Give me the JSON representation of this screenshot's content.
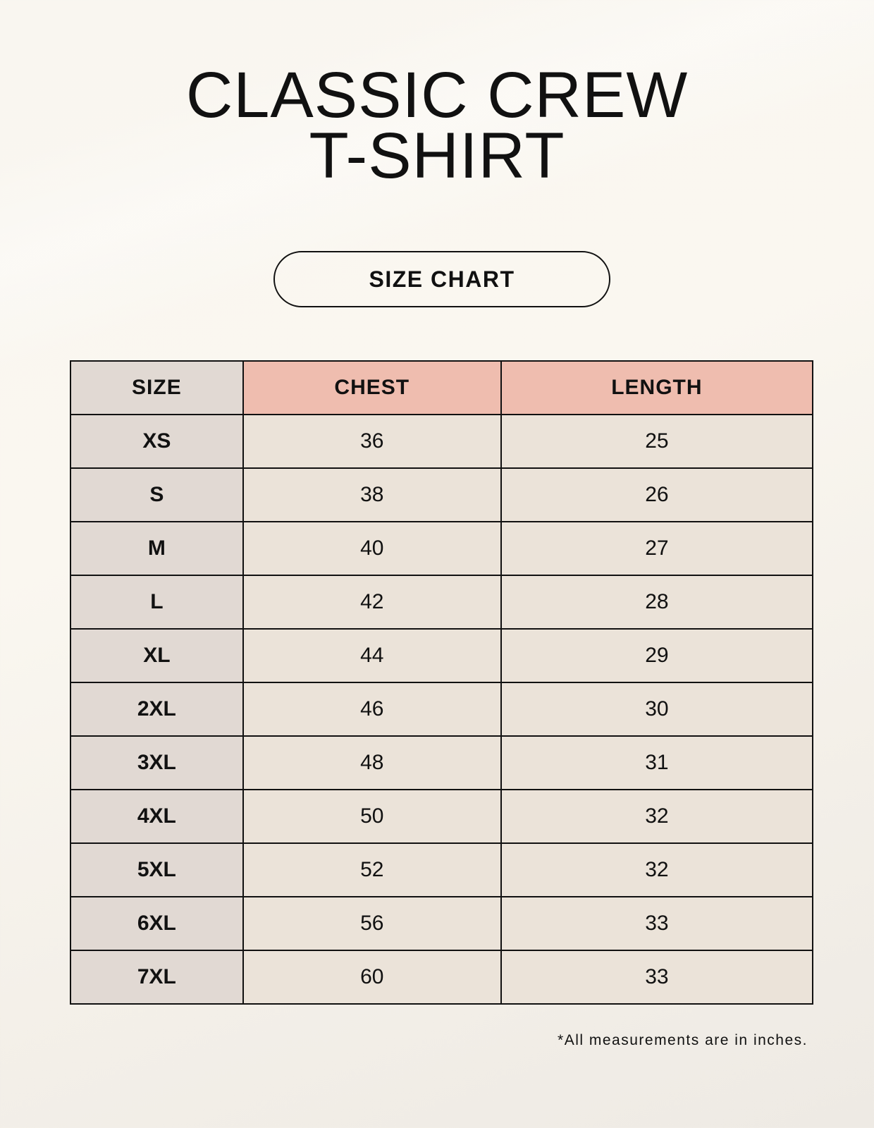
{
  "title": {
    "line1": "CLASSIC CREW",
    "line2": "T-SHIRT"
  },
  "badge": "SIZE CHART",
  "table": {
    "headers": [
      "SIZE",
      "CHEST",
      "LENGTH"
    ],
    "rows": [
      [
        "XS",
        "36",
        "25"
      ],
      [
        "S",
        "38",
        "26"
      ],
      [
        "M",
        "40",
        "27"
      ],
      [
        "L",
        "42",
        "28"
      ],
      [
        "XL",
        "44",
        "29"
      ],
      [
        "2XL",
        "46",
        "30"
      ],
      [
        "3XL",
        "48",
        "31"
      ],
      [
        "4XL",
        "50",
        "32"
      ],
      [
        "5XL",
        "52",
        "32"
      ],
      [
        "6XL",
        "56",
        "33"
      ],
      [
        "7XL",
        "60",
        "33"
      ]
    ]
  },
  "note": "*All measurements are in inches.",
  "colors": {
    "size_column": "#e1d9d3",
    "header_accent": "#efbdaf",
    "value_cells": "#ebe3d9",
    "background": "#f9f6f0"
  }
}
